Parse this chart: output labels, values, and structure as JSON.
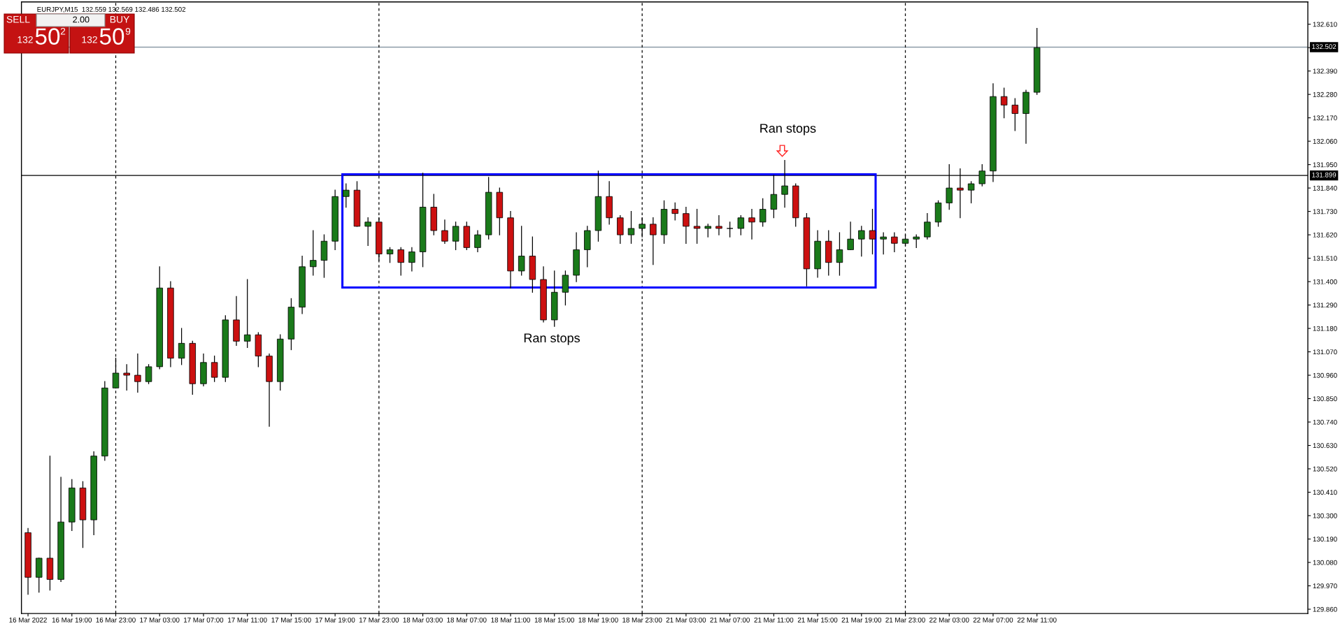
{
  "chart_data": {
    "type": "candlestick",
    "title": "EURJPY,M15  132.559 132.569 132.486 132.502",
    "categories": [
      "16 Mar 2022",
      null,
      null,
      null,
      "16 Mar 19:00",
      null,
      null,
      null,
      "16 Mar 23:00",
      null,
      null,
      null,
      "17 Mar 03:00",
      null,
      null,
      null,
      "17 Mar 07:00",
      null,
      null,
      null,
      "17 Mar 11:00",
      null,
      null,
      null,
      "17 Mar 15:00",
      null,
      null,
      null,
      "17 Mar 19:00",
      null,
      null,
      null,
      "17 Mar 23:00",
      null,
      null,
      null,
      "18 Mar 03:00",
      null,
      null,
      null,
      "18 Mar 07:00",
      null,
      null,
      null,
      "18 Mar 11:00",
      null,
      null,
      null,
      "18 Mar 15:00",
      null,
      null,
      null,
      "18 Mar 19:00",
      null,
      null,
      null,
      "18 Mar 23:00",
      null,
      null,
      null,
      "21 Mar 03:00",
      null,
      null,
      null,
      "21 Mar 07:00",
      null,
      null,
      null,
      "21 Mar 11:00",
      null,
      null,
      null,
      "21 Mar 15:00",
      null,
      null,
      null,
      "21 Mar 19:00",
      null,
      null,
      null,
      "21 Mar 23:00",
      null,
      null,
      null,
      "22 Mar 03:00",
      null,
      null,
      null,
      "22 Mar 07:00",
      null,
      null,
      null,
      "22 Mar 11:00",
      null,
      null,
      null,
      null,
      null,
      null,
      null,
      null,
      null,
      null,
      null,
      null,
      null,
      null,
      null,
      null,
      null,
      null,
      null,
      null,
      null,
      null,
      null,
      null
    ],
    "ohlc": [
      [
        130.22,
        130.24,
        129.93,
        130.01
      ],
      [
        130.01,
        130.1,
        129.94,
        130.1
      ],
      [
        130.1,
        130.58,
        129.95,
        130.0
      ],
      [
        130.0,
        130.48,
        129.99,
        130.27
      ],
      [
        130.27,
        130.47,
        130.23,
        130.43
      ],
      [
        130.43,
        130.46,
        130.15,
        130.28
      ],
      [
        130.28,
        130.6,
        130.21,
        130.58
      ],
      [
        130.58,
        130.93,
        130.56,
        130.9
      ],
      [
        130.9,
        131.04,
        130.9,
        130.97
      ],
      [
        130.97,
        131.01,
        130.89,
        130.96
      ],
      [
        130.96,
        131.06,
        130.88,
        130.93
      ],
      [
        130.93,
        131.01,
        130.92,
        131.0
      ],
      [
        131.0,
        131.47,
        130.99,
        131.37
      ],
      [
        131.37,
        131.4,
        131.0,
        131.04
      ],
      [
        131.04,
        131.18,
        131.01,
        131.11
      ],
      [
        131.11,
        131.12,
        130.87,
        130.92
      ],
      [
        130.92,
        131.06,
        130.91,
        131.02
      ],
      [
        131.02,
        131.05,
        130.93,
        130.95
      ],
      [
        130.95,
        131.24,
        130.93,
        131.22
      ],
      [
        131.22,
        131.33,
        131.1,
        131.12
      ],
      [
        131.12,
        131.41,
        131.09,
        131.15
      ],
      [
        131.15,
        131.16,
        131.0,
        131.05
      ],
      [
        131.05,
        131.06,
        130.72,
        130.93
      ],
      [
        130.93,
        131.15,
        130.89,
        131.13
      ],
      [
        131.13,
        131.32,
        131.08,
        131.28
      ],
      [
        131.28,
        131.52,
        131.25,
        131.47
      ],
      [
        131.47,
        131.64,
        131.43,
        131.5
      ],
      [
        131.5,
        131.62,
        131.42,
        131.59
      ],
      [
        131.59,
        131.83,
        131.55,
        131.8
      ],
      [
        131.8,
        131.86,
        131.75,
        131.83
      ],
      [
        131.83,
        131.87,
        131.66,
        131.66
      ],
      [
        131.66,
        131.7,
        131.57,
        131.68
      ],
      [
        131.68,
        131.7,
        131.5,
        131.53
      ],
      [
        131.53,
        131.56,
        131.49,
        131.55
      ],
      [
        131.55,
        131.56,
        131.43,
        131.49
      ],
      [
        131.49,
        131.56,
        131.45,
        131.54
      ],
      [
        131.54,
        131.91,
        131.47,
        131.75
      ],
      [
        131.75,
        131.81,
        131.62,
        131.64
      ],
      [
        131.64,
        131.69,
        131.58,
        131.59
      ],
      [
        131.59,
        131.68,
        131.55,
        131.66
      ],
      [
        131.66,
        131.68,
        131.55,
        131.56
      ],
      [
        131.56,
        131.64,
        131.54,
        131.62
      ],
      [
        131.62,
        131.89,
        131.6,
        131.82
      ],
      [
        131.82,
        131.84,
        131.62,
        131.7
      ],
      [
        131.7,
        131.73,
        131.37,
        131.45
      ],
      [
        131.45,
        131.66,
        131.43,
        131.52
      ],
      [
        131.52,
        131.61,
        131.35,
        131.41
      ],
      [
        131.41,
        131.47,
        131.21,
        131.22
      ],
      [
        131.22,
        131.45,
        131.19,
        131.35
      ],
      [
        131.35,
        131.45,
        131.29,
        131.43
      ],
      [
        131.43,
        131.63,
        131.4,
        131.55
      ],
      [
        131.55,
        131.66,
        131.47,
        131.64
      ],
      [
        131.64,
        131.92,
        131.59,
        131.8
      ],
      [
        131.8,
        131.87,
        131.67,
        131.7
      ],
      [
        131.7,
        131.71,
        131.58,
        131.62
      ],
      [
        131.62,
        131.73,
        131.58,
        131.65
      ],
      [
        131.65,
        131.7,
        131.61,
        131.67
      ],
      [
        131.67,
        131.7,
        131.48,
        131.62
      ],
      [
        131.62,
        131.78,
        131.58,
        131.74
      ],
      [
        131.74,
        131.77,
        131.69,
        131.72
      ],
      [
        131.72,
        131.75,
        131.58,
        131.66
      ],
      [
        131.66,
        131.74,
        131.58,
        131.65
      ],
      [
        131.65,
        131.67,
        131.61,
        131.66
      ],
      [
        131.66,
        131.71,
        131.62,
        131.65
      ],
      [
        131.65,
        131.68,
        131.61,
        131.65
      ],
      [
        131.65,
        131.71,
        131.62,
        131.7
      ],
      [
        131.7,
        131.74,
        131.6,
        131.68
      ],
      [
        131.68,
        131.79,
        131.66,
        131.74
      ],
      [
        131.74,
        131.9,
        131.7,
        131.81
      ],
      [
        131.81,
        131.97,
        131.75,
        131.85
      ],
      [
        131.85,
        131.86,
        131.66,
        131.7
      ],
      [
        131.7,
        131.72,
        131.38,
        131.46
      ],
      [
        131.46,
        131.64,
        131.42,
        131.59
      ],
      [
        131.59,
        131.64,
        131.43,
        131.49
      ],
      [
        131.49,
        131.63,
        131.43,
        131.55
      ],
      [
        131.55,
        131.68,
        131.55,
        131.6
      ],
      [
        131.6,
        131.66,
        131.52,
        131.64
      ],
      [
        131.64,
        131.74,
        131.53,
        131.6
      ],
      [
        131.6,
        131.63,
        131.53,
        131.61
      ],
      [
        131.61,
        131.63,
        131.54,
        131.58
      ],
      [
        131.58,
        131.62,
        131.57,
        131.6
      ],
      [
        131.6,
        131.62,
        131.56,
        131.61
      ],
      [
        131.61,
        131.72,
        131.6,
        131.68
      ],
      [
        131.68,
        131.78,
        131.66,
        131.77
      ],
      [
        131.77,
        131.95,
        131.74,
        131.84
      ],
      [
        131.84,
        131.93,
        131.7,
        131.83
      ],
      [
        131.83,
        131.87,
        131.77,
        131.86
      ],
      [
        131.86,
        131.95,
        131.85,
        131.92
      ],
      [
        131.92,
        132.33,
        131.87,
        132.27
      ],
      [
        132.27,
        132.31,
        132.17,
        132.23
      ],
      [
        132.23,
        132.26,
        132.11,
        132.19
      ],
      [
        132.19,
        132.3,
        132.05,
        132.29
      ],
      [
        132.29,
        132.59,
        132.28,
        132.5
      ],
      null,
      null,
      null,
      null,
      null,
      null,
      null,
      null,
      null,
      null,
      null,
      null,
      null,
      null,
      null,
      null,
      null,
      null,
      null,
      null,
      null,
      null,
      null,
      null
    ],
    "ylim": [
      129.84,
      132.715
    ],
    "yticks": [
      {
        "value": 129.86,
        "label": "129.860"
      },
      {
        "value": 129.97,
        "label": "129.970"
      },
      {
        "value": 130.08,
        "label": "130.080"
      },
      {
        "value": 130.19,
        "label": "130.190"
      },
      {
        "value": 130.3,
        "label": "130.300"
      },
      {
        "value": 130.41,
        "label": "130.410"
      },
      {
        "value": 130.52,
        "label": "130.520"
      },
      {
        "value": 130.63,
        "label": "130.630"
      },
      {
        "value": 130.74,
        "label": "130.740"
      },
      {
        "value": 130.85,
        "label": "130.850"
      },
      {
        "value": 130.96,
        "label": "130.960"
      },
      {
        "value": 131.07,
        "label": "131.070"
      },
      {
        "value": 131.18,
        "label": "131.180"
      },
      {
        "value": 131.29,
        "label": "131.290"
      },
      {
        "value": 131.4,
        "label": "131.400"
      },
      {
        "value": 131.51,
        "label": "131.510"
      },
      {
        "value": 131.62,
        "label": "131.620"
      },
      {
        "value": 131.73,
        "label": "131.730"
      },
      {
        "value": 131.84,
        "label": "131.840"
      },
      {
        "value": 131.95,
        "label": "131.950"
      },
      {
        "value": 132.06,
        "label": "132.060"
      },
      {
        "value": 132.17,
        "label": "132.170"
      },
      {
        "value": 132.28,
        "label": "132.280"
      },
      {
        "value": 132.39,
        "label": "132.390"
      },
      {
        "value": 132.5,
        "label": null
      },
      {
        "value": 132.61,
        "label": "132.610"
      }
    ],
    "ref_lines": [
      {
        "axis": "y",
        "value": 131.899,
        "label": "131.899",
        "color": "#000000",
        "line_style": "solid"
      },
      {
        "axis": "y",
        "value": 132.502,
        "label": "132.502",
        "color": "#8c9aa6",
        "line_style": "solid"
      },
      {
        "axis": "x",
        "value": "16 Mar 23:00",
        "color": "#000000",
        "line_style": "dashed"
      },
      {
        "axis": "x",
        "value": "17 Mar 23:00",
        "color": "#000000",
        "line_style": "dashed"
      },
      {
        "axis": "x",
        "value": "18 Mar 23:00",
        "color": "#000000",
        "line_style": "dashed"
      },
      {
        "axis": "x",
        "value": "21 Mar 23:00",
        "color": "#000000",
        "line_style": "dashed"
      }
    ],
    "annotations": [
      "Ran stops",
      "Ran stops",
      "SELL",
      "2.00",
      "BUY",
      "132",
      "50",
      "2",
      "132",
      "50",
      "9"
    ],
    "grid": false,
    "legend": false
  }
}
